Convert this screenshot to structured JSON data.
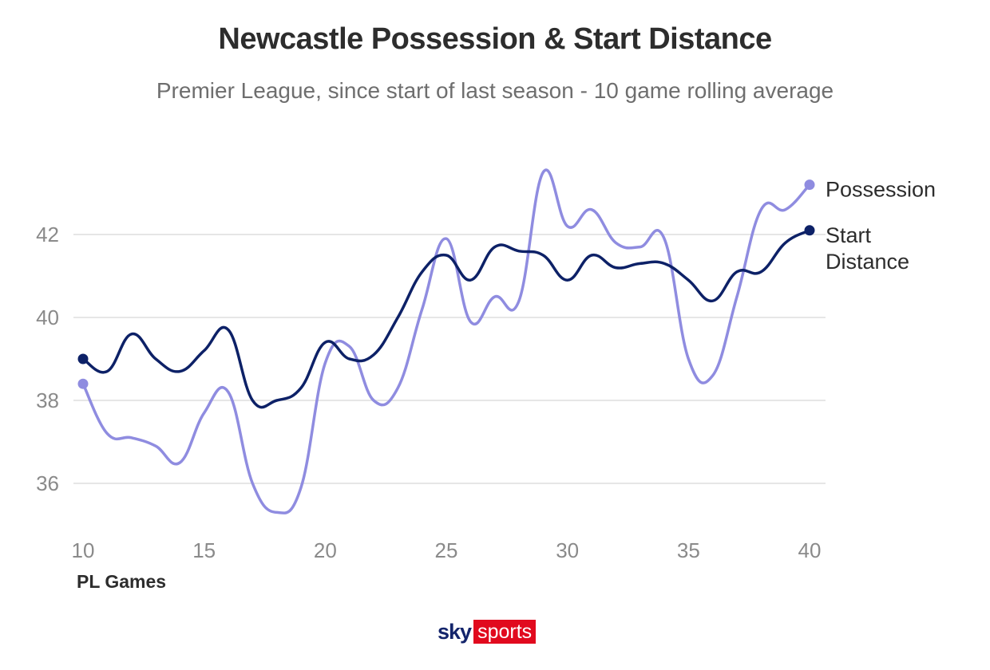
{
  "chart_data": {
    "type": "line",
    "title": "Newcastle Possession & Start Distance",
    "subtitle": "Premier League, since start of last season - 10 game rolling average",
    "xlabel": "PL Games",
    "ylabel": "",
    "xlim": [
      10,
      40
    ],
    "ylim": [
      35,
      44
    ],
    "xticks": [
      10,
      15,
      20,
      25,
      30,
      35,
      40
    ],
    "yticks": [
      36,
      38,
      40,
      42
    ],
    "grid": "horizontal",
    "legend": "end-of-line labels",
    "x": [
      10,
      11,
      12,
      13,
      14,
      15,
      16,
      17,
      18,
      19,
      20,
      21,
      22,
      23,
      24,
      25,
      26,
      27,
      28,
      29,
      30,
      31,
      32,
      33,
      34,
      35,
      36,
      37,
      38,
      39,
      40
    ],
    "series": [
      {
        "name": "Possession",
        "label_lines": [
          "Possession"
        ],
        "color": "#8f8ce0",
        "values": [
          38.4,
          37.2,
          37.1,
          36.9,
          36.5,
          37.7,
          38.2,
          36.0,
          35.3,
          35.9,
          38.9,
          39.3,
          38.0,
          38.3,
          40.2,
          41.9,
          39.9,
          40.5,
          40.4,
          43.5,
          42.2,
          42.6,
          41.8,
          41.7,
          41.9,
          39.0,
          38.6,
          40.5,
          42.6,
          42.6,
          43.2
        ]
      },
      {
        "name": "Start Distance",
        "label_lines": [
          "Start",
          "Distance"
        ],
        "color": "#0d2167",
        "values": [
          39.0,
          38.7,
          39.6,
          39.0,
          38.7,
          39.2,
          39.7,
          38.0,
          38.0,
          38.3,
          39.4,
          39.0,
          39.1,
          40.0,
          41.1,
          41.5,
          40.9,
          41.7,
          41.6,
          41.5,
          40.9,
          41.5,
          41.2,
          41.3,
          41.3,
          40.9,
          40.4,
          41.1,
          41.1,
          41.8,
          42.1
        ]
      }
    ]
  },
  "branding": {
    "sky": "sky",
    "sports": "sports"
  }
}
